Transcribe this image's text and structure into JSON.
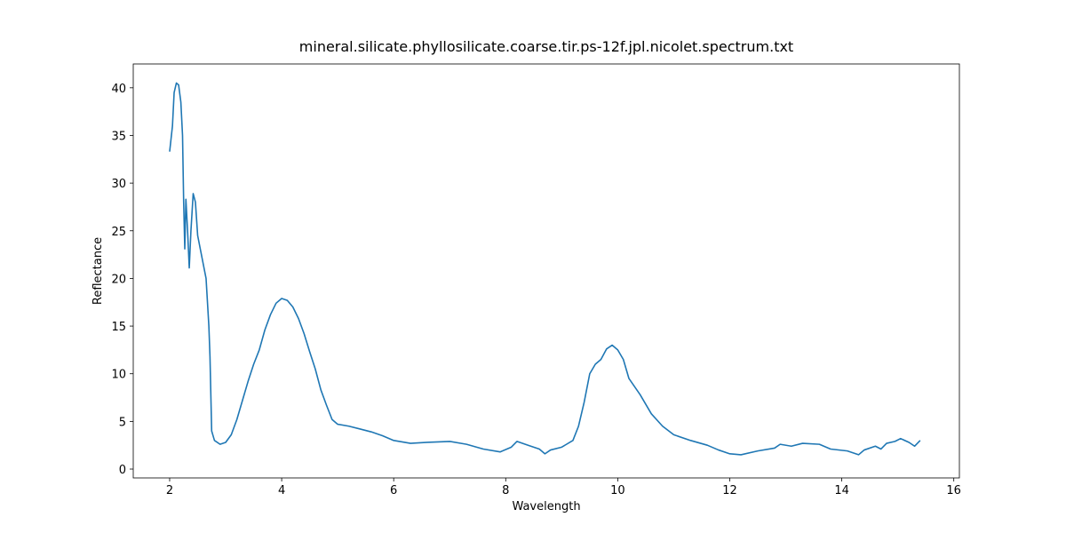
{
  "chart_data": {
    "type": "line",
    "title": "mineral.silicate.phyllosilicate.coarse.tir.ps-12f.jpl.nicolet.spectrum.txt",
    "x_label": "Wavelength",
    "y_label": "Reflectance",
    "color": "#1f77b4",
    "x": [
      2.0,
      2.05,
      2.08,
      2.12,
      2.16,
      2.2,
      2.23,
      2.25,
      2.27,
      2.29,
      2.32,
      2.35,
      2.38,
      2.42,
      2.46,
      2.5,
      2.55,
      2.6,
      2.65,
      2.7,
      2.72,
      2.75,
      2.8,
      2.9,
      3.0,
      3.1,
      3.2,
      3.3,
      3.4,
      3.5,
      3.6,
      3.7,
      3.8,
      3.9,
      4.0,
      4.1,
      4.2,
      4.3,
      4.4,
      4.5,
      4.6,
      4.7,
      4.8,
      4.9,
      5.0,
      5.2,
      5.4,
      5.6,
      5.8,
      6.0,
      6.3,
      6.6,
      7.0,
      7.3,
      7.6,
      7.9,
      8.1,
      8.2,
      8.4,
      8.6,
      8.7,
      8.8,
      9.0,
      9.2,
      9.3,
      9.4,
      9.5,
      9.6,
      9.7,
      9.8,
      9.9,
      10.0,
      10.1,
      10.2,
      10.4,
      10.6,
      10.8,
      11.0,
      11.3,
      11.6,
      11.8,
      12.0,
      12.2,
      12.5,
      12.8,
      12.9,
      13.1,
      13.3,
      13.6,
      13.8,
      14.1,
      14.3,
      14.4,
      14.6,
      14.7,
      14.8,
      14.95,
      15.05,
      15.2,
      15.3,
      15.4
    ],
    "values": [
      33.3,
      36,
      39.5,
      40.5,
      40.3,
      38.5,
      35,
      28,
      23.1,
      28.3,
      25,
      21.1,
      25,
      28.9,
      28,
      24.5,
      23,
      21.5,
      20,
      15,
      11.8,
      4,
      3.0,
      2.6,
      2.8,
      3.6,
      5.2,
      7.2,
      9.2,
      11,
      12.5,
      14.6,
      16.2,
      17.4,
      17.9,
      17.7,
      17.0,
      15.8,
      14.2,
      12.3,
      10.5,
      8.3,
      6.7,
      5.2,
      4.7,
      4.5,
      4.2,
      3.9,
      3.5,
      3.0,
      2.7,
      2.8,
      2.9,
      2.6,
      2.1,
      1.8,
      2.3,
      2.9,
      2.5,
      2.1,
      1.6,
      2.0,
      2.3,
      3.0,
      4.5,
      7.0,
      10,
      11,
      11.5,
      12.6,
      13,
      12.5,
      11.5,
      9.5,
      7.8,
      5.8,
      4.5,
      3.6,
      3.0,
      2.5,
      2.0,
      1.6,
      1.5,
      1.9,
      2.2,
      2.6,
      2.4,
      2.7,
      2.6,
      2.1,
      1.9,
      1.5,
      2.0,
      2.4,
      2.1,
      2.7,
      2.9,
      3.2,
      2.8,
      2.4,
      3.0
    ],
    "xlim": [
      1.35,
      16.1
    ],
    "ylim": [
      -0.93,
      42.5
    ],
    "xticks": [
      2,
      4,
      6,
      8,
      10,
      12,
      14,
      16
    ],
    "yticks": [
      0,
      5,
      10,
      15,
      20,
      25,
      30,
      35,
      40
    ],
    "grid": false
  }
}
